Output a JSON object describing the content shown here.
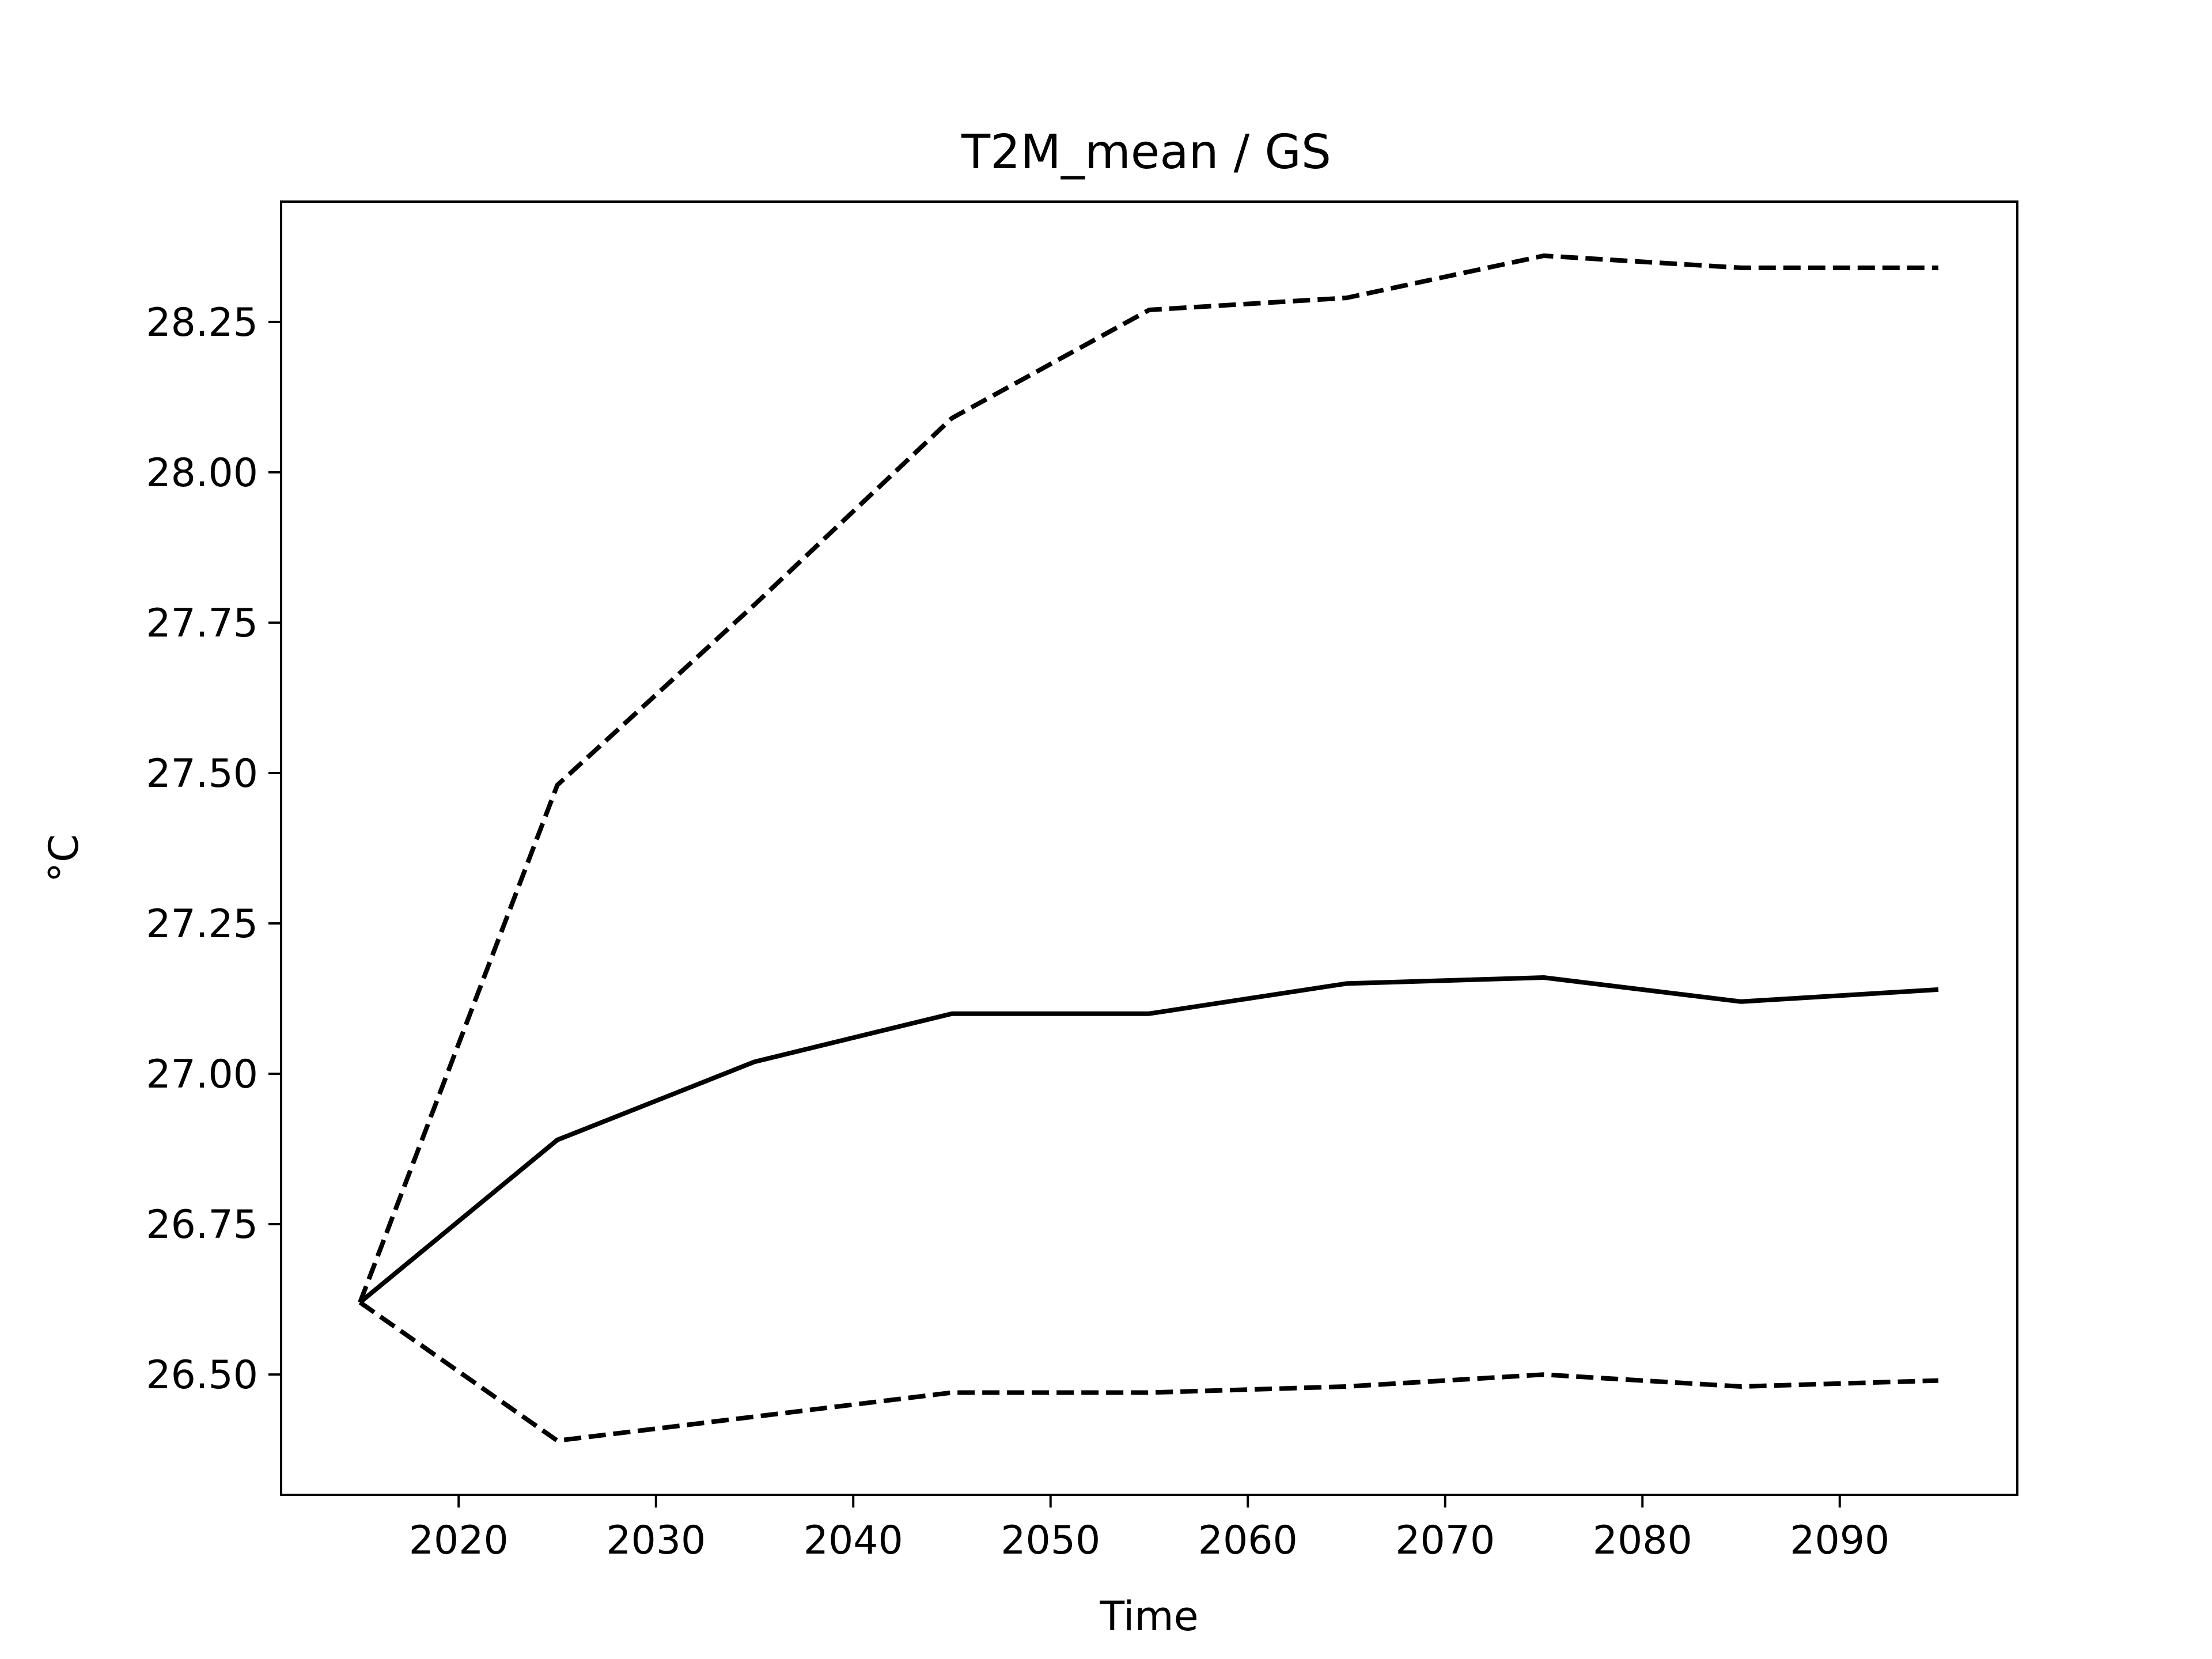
{
  "chart_data": {
    "type": "line",
    "title": "T2M_mean / GS",
    "xlabel": "Time",
    "ylabel": "°C",
    "xlim": [
      2011,
      2099
    ],
    "ylim": [
      26.3,
      28.45
    ],
    "x_ticks": [
      2020,
      2030,
      2040,
      2050,
      2060,
      2070,
      2080,
      2090
    ],
    "y_ticks": [
      26.5,
      26.75,
      27.0,
      27.25,
      27.5,
      27.75,
      28.0,
      28.25
    ],
    "grid": false,
    "x": [
      2015,
      2025,
      2035,
      2045,
      2055,
      2065,
      2075,
      2085,
      2095
    ],
    "series": [
      {
        "style": "solid",
        "color": "#000000",
        "values": [
          26.62,
          26.89,
          27.02,
          27.1,
          27.1,
          27.15,
          27.16,
          27.12,
          27.14
        ]
      },
      {
        "style": "dashed",
        "color": "#000000",
        "values": [
          26.62,
          27.48,
          27.78,
          28.09,
          28.27,
          28.29,
          28.36,
          28.34,
          28.34
        ]
      },
      {
        "style": "dashed",
        "color": "#000000",
        "values": [
          26.62,
          26.39,
          26.43,
          26.47,
          26.47,
          26.48,
          26.5,
          26.48,
          26.49
        ]
      }
    ]
  }
}
